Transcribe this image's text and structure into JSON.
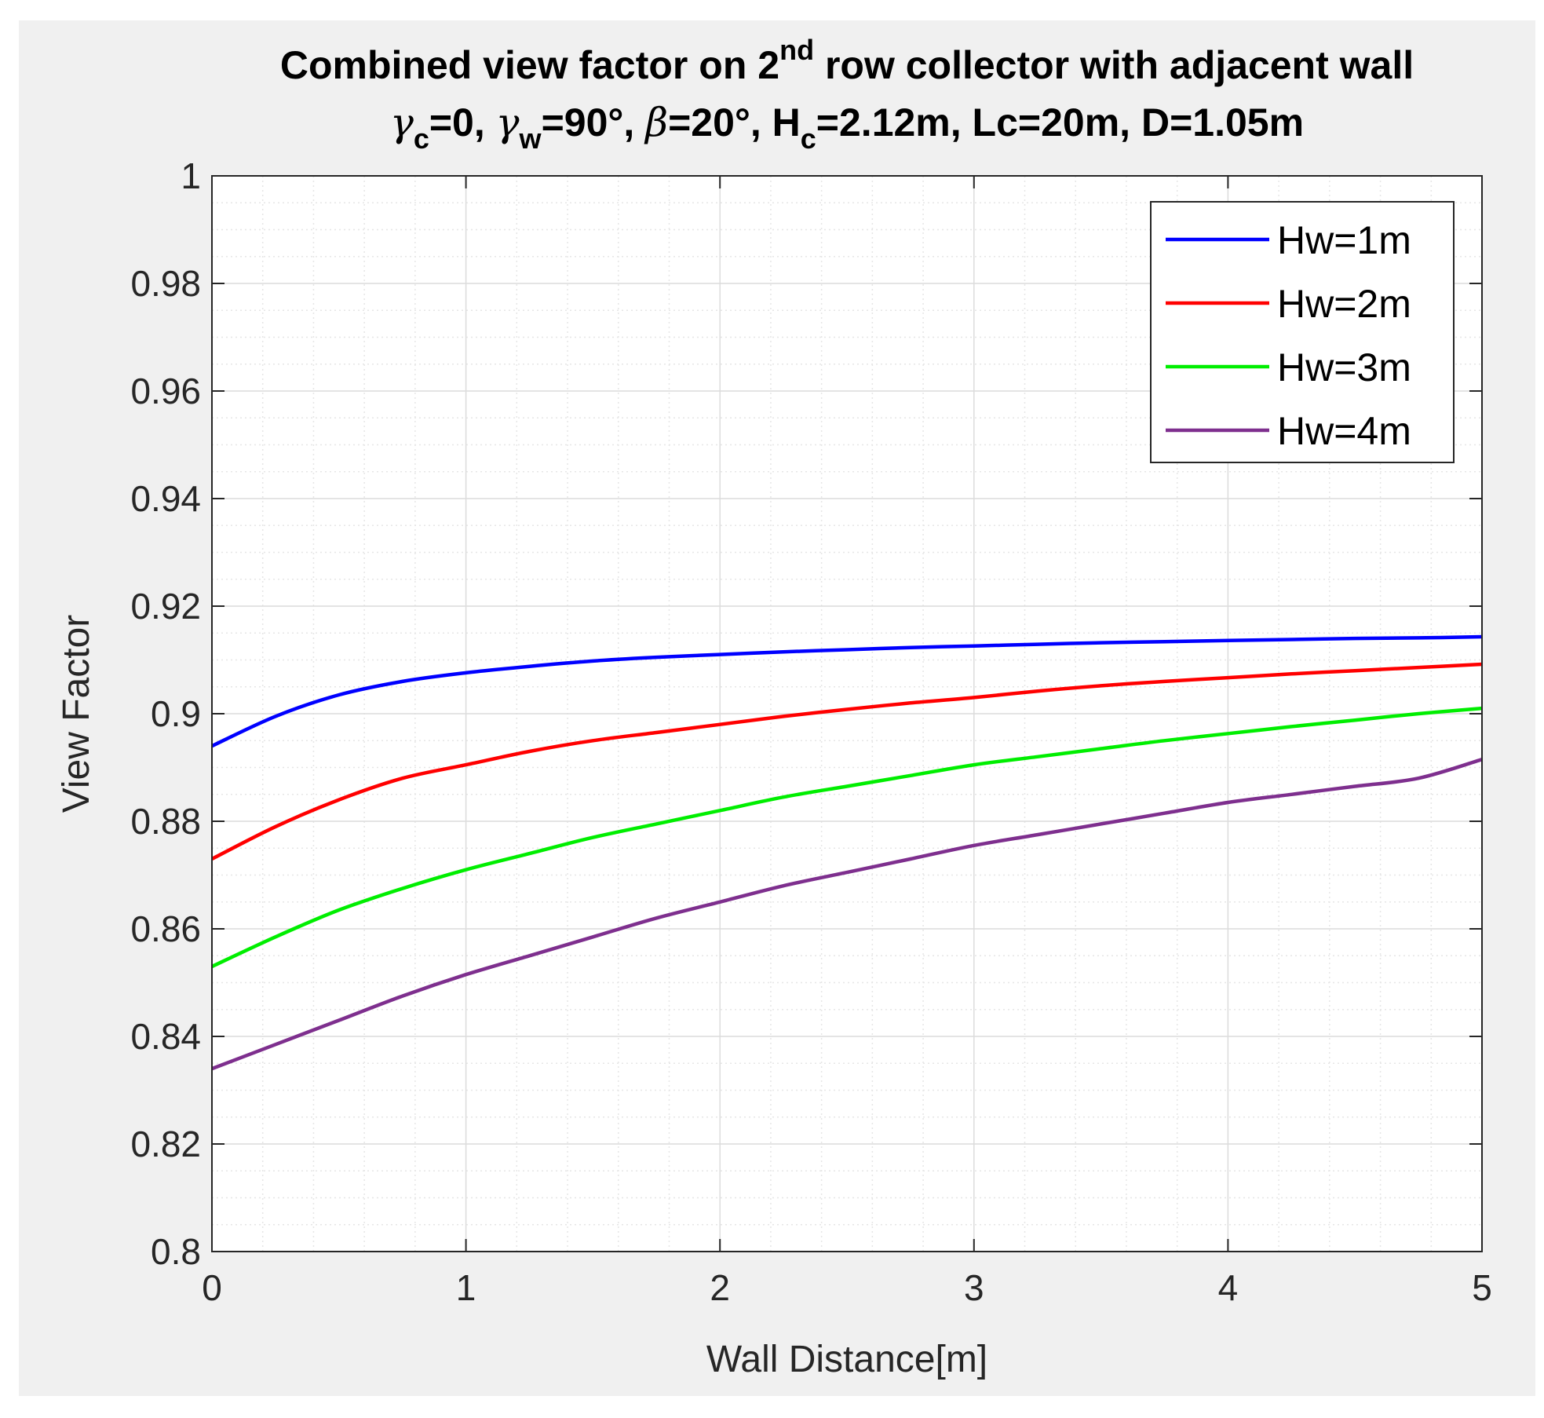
{
  "chart_data": {
    "type": "line",
    "title_line1": {
      "prefix": "Combined view factor on 2",
      "superscript": "nd",
      "suffix": " row collector with adjacent wall"
    },
    "title_line2": {
      "gamma_symbol_1": "γ",
      "gamma_sub_1": "c",
      "gamma_value_1": "=0, ",
      "gamma_symbol_2": "γ",
      "gamma_sub_2": "w",
      "gamma_value_2": "=90°, ",
      "beta_symbol": "β",
      "beta_value": "=20°, H",
      "hc_sub": "c",
      "rest": "=2.12m, Lc=20m, D=1.05m"
    },
    "xlabel": "Wall Distance[m]",
    "ylabel": "View Factor",
    "xlim": [
      0,
      5
    ],
    "ylim": [
      0.8,
      1.0
    ],
    "x_ticks": [
      0,
      1,
      2,
      3,
      4,
      5
    ],
    "x_tick_labels": [
      "0",
      "1",
      "2",
      "3",
      "4",
      "5"
    ],
    "y_ticks": [
      0.8,
      0.82,
      0.84,
      0.86,
      0.88,
      0.9,
      0.92,
      0.94,
      0.96,
      0.98,
      1.0
    ],
    "y_tick_labels": [
      "0.8",
      "0.82",
      "0.84",
      "0.86",
      "0.88",
      "0.9",
      "0.92",
      "0.94",
      "0.96",
      "0.98",
      "1"
    ],
    "grid": true,
    "minor_grid": true,
    "legend_position": "top-right",
    "x": [
      0,
      0.25,
      0.5,
      0.75,
      1,
      1.25,
      1.5,
      1.75,
      2,
      2.25,
      2.5,
      2.75,
      3,
      3.25,
      3.5,
      3.75,
      4,
      4.25,
      4.5,
      4.75,
      5
    ],
    "series": [
      {
        "name": "Hw=1m",
        "color": "#0000ff",
        "values": [
          0.894,
          0.8995,
          0.9035,
          0.906,
          0.9076,
          0.9088,
          0.9098,
          0.9105,
          0.911,
          0.9115,
          0.9119,
          0.9123,
          0.9126,
          0.9129,
          0.9132,
          0.9134,
          0.9136,
          0.9138,
          0.914,
          0.9141,
          0.9143
        ]
      },
      {
        "name": "Hw=2m",
        "color": "#ff0000",
        "values": [
          0.873,
          0.879,
          0.884,
          0.888,
          0.8905,
          0.893,
          0.895,
          0.8965,
          0.898,
          0.8995,
          0.9008,
          0.902,
          0.903,
          0.9042,
          0.9052,
          0.906,
          0.9067,
          0.9074,
          0.908,
          0.9086,
          0.9092
        ]
      },
      {
        "name": "Hw=3m",
        "color": "#00ee00",
        "values": [
          0.853,
          0.8585,
          0.8635,
          0.8675,
          0.871,
          0.874,
          0.877,
          0.8795,
          0.882,
          0.8845,
          0.8865,
          0.8885,
          0.8905,
          0.892,
          0.8935,
          0.895,
          0.8963,
          0.8976,
          0.8988,
          0.9,
          0.901
        ]
      },
      {
        "name": "Hw=4m",
        "color": "#7e2f8e",
        "values": [
          0.834,
          0.8385,
          0.843,
          0.8475,
          0.8515,
          0.855,
          0.8585,
          0.862,
          0.865,
          0.868,
          0.8705,
          0.873,
          0.8755,
          0.8775,
          0.8795,
          0.8815,
          0.8835,
          0.885,
          0.8865,
          0.888,
          0.8915
        ]
      }
    ]
  }
}
